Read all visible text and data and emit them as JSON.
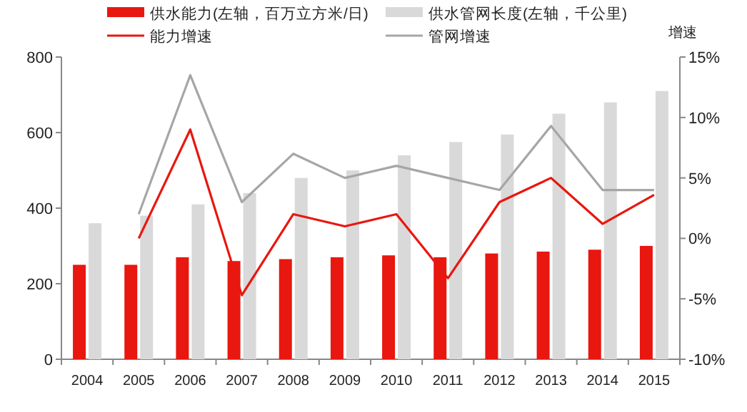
{
  "chart_data": {
    "type": "bar",
    "y2label": "增速",
    "categories": [
      "2004",
      "2005",
      "2006",
      "2007",
      "2008",
      "2009",
      "2010",
      "2011",
      "2012",
      "2013",
      "2014",
      "2015"
    ],
    "series": [
      {
        "name": "供水能力(左轴，百万立方米/日)",
        "color": "#e8170f",
        "values": [
          250,
          250,
          270,
          260,
          265,
          270,
          275,
          270,
          280,
          285,
          290,
          300
        ]
      },
      {
        "name": "供水管网长度(左轴，千公里)",
        "color": "#d9d9d9",
        "values": [
          360,
          380,
          410,
          440,
          480,
          500,
          540,
          575,
          595,
          650,
          680,
          710
        ]
      },
      {
        "name": "能力增速",
        "type": "line",
        "axis": "y2",
        "color": "#e8170f",
        "values": [
          null,
          0,
          9,
          -4.7,
          2,
          1,
          2,
          -3.3,
          3,
          5,
          1.2,
          3.6
        ]
      },
      {
        "name": "管网增速",
        "type": "line",
        "axis": "y2",
        "color": "#a6a6a6",
        "values": [
          null,
          2,
          13.5,
          3,
          7,
          5,
          6,
          5,
          4,
          9.3,
          4,
          4
        ]
      }
    ],
    "ylim": [
      0,
      800
    ],
    "yticks": [
      0,
      200,
      400,
      600,
      800
    ],
    "y2lim": [
      -10,
      15
    ],
    "y2ticks": [
      {
        "value": -10,
        "label": "-10%"
      },
      {
        "value": -5,
        "label": "-5%"
      },
      {
        "value": 0,
        "label": "0%"
      },
      {
        "value": 5,
        "label": "5%"
      },
      {
        "value": 10,
        "label": "10%"
      },
      {
        "value": 15,
        "label": "15%"
      }
    ],
    "legend": "top",
    "grid": false,
    "marker": "none",
    "line_style": "solid"
  }
}
